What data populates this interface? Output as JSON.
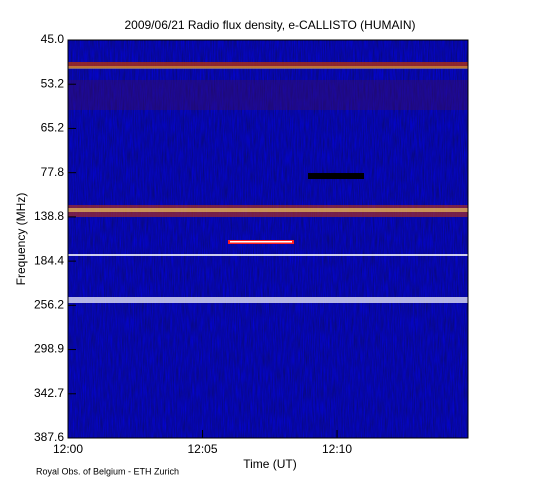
{
  "chart_data": {
    "type": "spectrogram",
    "title": "2009/06/21  Radio flux density, e-CALLISTO (HUMAIN)",
    "xlabel": "Time (UT)",
    "ylabel": "Frequency (MHz)",
    "credit": "Royal Obs. of Belgium - ETH Zurich",
    "xlim": [
      0,
      14.87
    ],
    "xticks": [
      {
        "value": 0,
        "label": "12:00"
      },
      {
        "value": 5,
        "label": "12:05"
      },
      {
        "value": 10,
        "label": "12:10"
      }
    ],
    "yticklabels": [
      "45.0",
      "53.2",
      "65.2",
      "77.8",
      "138.8",
      "184.4",
      "256.2",
      "298.9",
      "342.7",
      "387.6"
    ]
  }
}
